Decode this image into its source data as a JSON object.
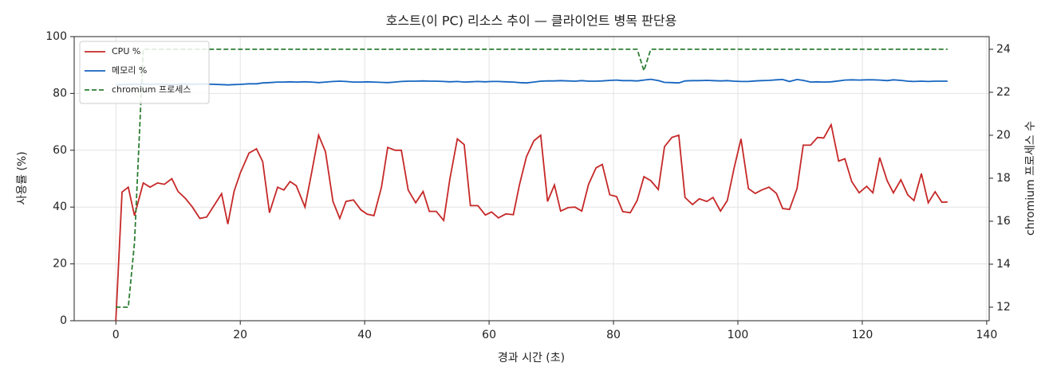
{
  "chart_data": {
    "type": "line",
    "title": "호스트(이 PC) 리소스 추이 — 클라이언트 병목 판단용",
    "x_label": "경과 시간 (초)",
    "y_label": "사용률 (%)",
    "y2_label": "chromium 프로세스 수",
    "x": [
      0,
      1,
      2,
      3,
      4.4,
      5.5,
      6.7,
      7.8,
      9,
      10,
      11.2,
      12.3,
      13.5,
      14.6,
      17,
      18,
      19,
      20,
      21.4,
      22.6,
      23.6,
      24.7,
      26,
      27,
      28,
      29,
      30.4,
      31.5,
      32.6,
      33.7,
      34.9,
      36,
      37,
      38.2,
      39.4,
      40.4,
      41.5,
      42.7,
      43.7,
      44.9,
      45.9,
      47,
      48.2,
      49.4,
      50.4,
      51.5,
      52.7,
      53.7,
      54.9,
      56,
      57,
      58.2,
      59.4,
      60.4,
      61.5,
      62.7,
      63.9,
      64.9,
      66,
      67.2,
      68.3,
      69.4,
      70.5,
      71.5,
      72.7,
      73.8,
      74.9,
      76,
      77.2,
      78.2,
      79.4,
      80.5,
      81.5,
      82.7,
      83.8,
      84.9,
      86,
      87.2,
      88.2,
      89.4,
      90.5,
      91.5,
      92.7,
      93.8,
      95,
      96,
      97.2,
      98.3,
      99.4,
      100.5,
      101.7,
      102.8,
      103.8,
      105,
      106.2,
      107.2,
      108.3,
      109.5,
      110.5,
      111.7,
      112.8,
      113.8,
      115,
      116.2,
      117.2,
      118.3,
      119.5,
      120.7,
      121.7,
      122.8,
      124,
      125,
      126.2,
      127.3,
      128.3,
      129.5,
      130.6,
      131.7,
      132.8,
      133.7
    ],
    "series": [
      {
        "name": "CPU %",
        "color": "#c62828",
        "style": "solid",
        "axis": "y",
        "values": [
          0,
          45.3,
          47,
          37,
          48.5,
          47,
          48.5,
          48,
          50,
          45.5,
          43,
          40,
          36,
          36.5,
          44.7,
          34,
          45.5,
          52,
          59,
          60.5,
          56,
          38,
          47,
          46,
          49,
          47.5,
          40,
          52.5,
          65.3,
          59.5,
          42,
          36,
          42,
          42.5,
          39,
          37.5,
          37,
          47,
          61,
          60,
          60,
          46,
          41.5,
          45.5,
          38.5,
          38.5,
          35.3,
          50,
          64,
          62,
          40.5,
          40.5,
          37.2,
          38.3,
          36.2,
          37.6,
          37.3,
          48,
          57.7,
          63.3,
          65.3,
          42,
          47.8,
          38.6,
          39.8,
          40,
          38.6,
          48,
          53.8,
          55,
          44.3,
          43.7,
          38.4,
          38,
          42.3,
          50.7,
          49.3,
          46.2,
          61.3,
          64.5,
          65.3,
          43.4,
          40.9,
          42.9,
          42,
          43.4,
          38.6,
          42.3,
          53.8,
          64,
          46.5,
          44.8,
          46,
          47,
          44.8,
          39.5,
          39.2,
          46.5,
          61.8,
          61.8,
          64.5,
          64.3,
          69,
          56.2,
          57,
          49,
          45,
          47.3,
          45,
          57.4,
          49.3,
          45,
          49.6,
          44.3,
          42.3,
          51.8,
          41.5,
          45.4,
          41.7,
          41.8
        ]
      },
      {
        "name": "메모리 %",
        "color": "#1565c0",
        "style": "solid",
        "axis": "y",
        "values": [
          83.0,
          83.1,
          83.2,
          83.2,
          83.3,
          83.2,
          83.3,
          83.2,
          83.1,
          83.2,
          83.3,
          83.2,
          83.3,
          83.3,
          83.1,
          83.0,
          83.1,
          83.2,
          83.4,
          83.4,
          83.7,
          83.8,
          84.0,
          84.0,
          84.1,
          84.0,
          84.1,
          84.0,
          83.8,
          84.0,
          84.2,
          84.3,
          84.2,
          84.0,
          84.0,
          84.1,
          84.0,
          83.9,
          83.8,
          84.0,
          84.2,
          84.3,
          84.3,
          84.4,
          84.3,
          84.3,
          84.2,
          84.1,
          84.2,
          84.0,
          84.1,
          84.2,
          84.1,
          84.2,
          84.2,
          84.1,
          84.0,
          83.8,
          83.7,
          84.0,
          84.3,
          84.4,
          84.4,
          84.5,
          84.4,
          84.3,
          84.5,
          84.3,
          84.3,
          84.4,
          84.6,
          84.7,
          84.5,
          84.5,
          84.4,
          84.7,
          85.0,
          84.5,
          83.9,
          83.8,
          83.7,
          84.4,
          84.5,
          84.5,
          84.6,
          84.5,
          84.4,
          84.5,
          84.3,
          84.2,
          84.2,
          84.4,
          84.5,
          84.6,
          84.8,
          84.9,
          84.2,
          84.9,
          84.6,
          84.0,
          84.1,
          84.0,
          84.1,
          84.4,
          84.7,
          84.8,
          84.7,
          84.8,
          84.8,
          84.7,
          84.5,
          84.8,
          84.6,
          84.3,
          84.2,
          84.3,
          84.2,
          84.3,
          84.3,
          84.3
        ]
      },
      {
        "name": "chromium 프로세스",
        "color": "#2e7d32",
        "style": "dashed",
        "axis": "y2",
        "values": [
          12,
          12,
          12,
          15,
          24,
          24,
          24,
          24,
          24,
          24,
          24,
          24,
          24,
          24,
          24,
          24,
          24,
          24,
          24,
          24,
          24,
          24,
          24,
          24,
          24,
          24,
          24,
          24,
          24,
          24,
          24,
          24,
          24,
          24,
          24,
          24,
          24,
          24,
          24,
          24,
          24,
          24,
          24,
          24,
          24,
          24,
          24,
          24,
          24,
          24,
          24,
          24,
          24,
          24,
          24,
          24,
          24,
          24,
          24,
          24,
          24,
          24,
          24,
          24,
          24,
          24,
          24,
          24,
          24,
          24,
          24,
          24,
          24,
          24,
          24,
          23,
          24,
          24,
          24,
          24,
          24,
          24,
          24,
          24,
          24,
          24,
          24,
          24,
          24,
          24,
          24,
          24,
          24,
          24,
          24,
          24,
          24,
          24,
          24,
          24,
          24,
          24,
          24,
          24,
          24,
          24,
          24,
          24,
          24,
          24,
          24,
          24,
          24,
          24,
          24,
          24,
          24,
          24,
          24,
          24
        ]
      }
    ],
    "xlim": [
      -6.7,
      140.4
    ],
    "xticks": [
      0,
      20,
      40,
      60,
      80,
      100,
      120,
      140
    ],
    "ylim": [
      0,
      100
    ],
    "yticks": [
      0,
      20,
      40,
      60,
      80,
      100
    ],
    "y2lim": [
      11.37,
      24.59
    ],
    "y2ticks": [
      12,
      14,
      16,
      18,
      20,
      22,
      24
    ],
    "grid": true,
    "legend": "upper left"
  }
}
